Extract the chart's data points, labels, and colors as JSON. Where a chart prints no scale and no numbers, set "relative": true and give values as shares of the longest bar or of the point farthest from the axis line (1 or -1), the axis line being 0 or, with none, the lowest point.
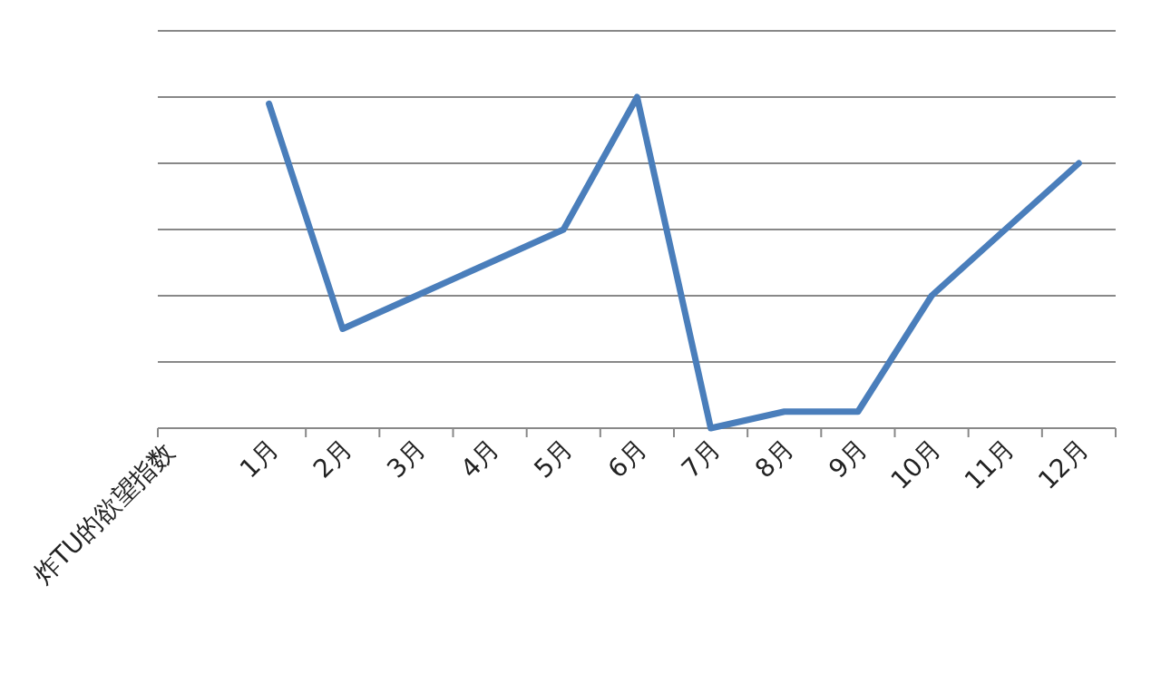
{
  "chart_data": {
    "type": "line",
    "xlabel": "炸TU的欲望指数",
    "categories": [
      "1月",
      "2月",
      "3月",
      "4月",
      "5月",
      "6月",
      "7月",
      "8月",
      "9月",
      "10月",
      "11月",
      "12月"
    ],
    "relative": true,
    "grid": "y",
    "marker": "none",
    "series": [
      {
        "color": "#4a7ebb",
        "values": [
          0.98,
          0.3,
          0.4,
          0.5,
          0.6,
          1,
          0,
          0.05,
          0.05,
          0.4,
          0.6,
          0.8
        ]
      }
    ]
  }
}
